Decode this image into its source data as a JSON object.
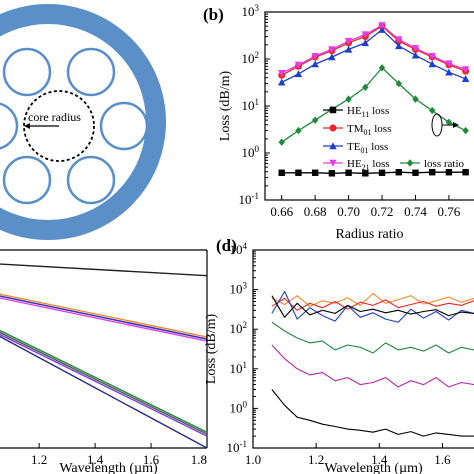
{
  "figure": {
    "panel_b_label": "(b)",
    "panel_d_label": "(d)",
    "schematic_label": "core radius"
  },
  "chart_data": [
    {
      "panel": "a",
      "type": "diagram",
      "annotation": "core radius",
      "colors": {
        "cladding": "#5b8fc8",
        "tubes": "#5b8fc8",
        "core_boundary": "#000000"
      }
    },
    {
      "panel": "b",
      "type": "line",
      "xlabel": "Radius ratio",
      "ylabel": "Loss (dB/m)",
      "xlim": [
        0.65,
        0.775
      ],
      "ylim": [
        0.1,
        1000
      ],
      "yscale": "log",
      "xticks": [
        "0.66",
        "0.68",
        "0.70",
        "0.72",
        "0.74",
        "0.76"
      ],
      "yticks": [
        "10^-1",
        "10^0",
        "10^1",
        "10^2",
        "10^3"
      ],
      "legend_position": "inside right",
      "x": [
        0.66,
        0.67,
        0.68,
        0.69,
        0.7,
        0.71,
        0.72,
        0.73,
        0.74,
        0.75,
        0.76,
        0.77
      ],
      "series": [
        {
          "name": "HE11 loss",
          "name_main": "HE",
          "name_sub": "11",
          "name_tail": " loss",
          "color": "#000000",
          "marker": "square",
          "values": [
            0.38,
            0.38,
            0.38,
            0.37,
            0.38,
            0.37,
            0.38,
            0.39,
            0.38,
            0.39,
            0.39,
            0.39
          ]
        },
        {
          "name": "TM01 loss",
          "name_main": "TM",
          "name_sub": "01",
          "name_tail": " loss",
          "color": "#e8282b",
          "marker": "circle",
          "values": [
            45,
            70,
            110,
            150,
            220,
            300,
            500,
            240,
            160,
            110,
            75,
            55
          ]
        },
        {
          "name": "TE01 loss",
          "name_main": "TE",
          "name_sub": "01",
          "name_tail": " loss",
          "color": "#1f3fc8",
          "marker": "triangle",
          "values": [
            32,
            48,
            78,
            110,
            160,
            220,
            420,
            190,
            120,
            78,
            52,
            38
          ]
        },
        {
          "name": "HE21 loss",
          "name_main": "HE",
          "name_sub": "21",
          "name_tail": " loss",
          "color": "#e53de8",
          "marker": "triangle-down",
          "values": [
            50,
            75,
            115,
            160,
            240,
            330,
            520,
            260,
            170,
            115,
            80,
            60
          ]
        },
        {
          "name": "loss ratio",
          "name_main": "loss ratio",
          "name_sub": "",
          "name_tail": "",
          "color": "#1f8a3c",
          "marker": "diamond",
          "values": [
            1.7,
            3.0,
            5.0,
            8.5,
            14,
            25,
            65,
            30,
            14,
            8,
            4.5,
            3
          ]
        }
      ]
    },
    {
      "panel": "c",
      "type": "line",
      "xlabel": "Wavelength (µm)",
      "xlim": [
        1.05,
        1.8
      ],
      "ylim": [
        0,
        1
      ],
      "xticks": [
        "1.2",
        "1.4",
        "1.6",
        "1.8"
      ],
      "series": [
        {
          "color": "#222222",
          "values_x": [
            1.05,
            1.8
          ],
          "values": [
            0.93,
            0.87
          ]
        },
        {
          "color": "#e8282b",
          "values_x": [
            1.05,
            1.8
          ],
          "values": [
            0.77,
            0.55
          ]
        },
        {
          "color": "#f28a2a",
          "values_x": [
            1.05,
            1.8
          ],
          "values": [
            0.78,
            0.56
          ]
        },
        {
          "color": "#e53de8",
          "values_x": [
            1.05,
            1.8
          ],
          "values": [
            0.76,
            0.54
          ]
        },
        {
          "color": "#1f3fc8",
          "values_x": [
            1.05,
            1.8
          ],
          "values": [
            0.77,
            0.55
          ]
        },
        {
          "color": "#1f8a3c",
          "values_x": [
            1.05,
            1.8
          ],
          "values": [
            0.6,
            0.08
          ]
        },
        {
          "color": "#555555",
          "values_x": [
            1.05,
            1.8
          ],
          "values": [
            0.59,
            0.07
          ]
        },
        {
          "color": "#7a3fd6",
          "values_x": [
            1.05,
            1.8
          ],
          "values": [
            0.58,
            0.06
          ]
        },
        {
          "color": "#2a2a8a",
          "values_x": [
            1.05,
            1.8
          ],
          "values": [
            0.57,
            0.0
          ]
        }
      ]
    },
    {
      "panel": "d",
      "type": "line",
      "xlabel": "Wavelength (µm)",
      "ylabel": "Loss (dB/m)",
      "xlim": [
        1.0,
        1.7
      ],
      "ylim": [
        0.1,
        10000
      ],
      "yscale": "log",
      "xticks": [
        "1.0",
        "1.2",
        "1.4",
        "1.6"
      ],
      "yticks": [
        "10^-1",
        "10^0",
        "10^1",
        "10^2",
        "10^3",
        "10^4"
      ],
      "series": [
        {
          "color": "#f28a2a",
          "x": [
            1.06,
            1.1,
            1.14,
            1.18,
            1.22,
            1.26,
            1.3,
            1.34,
            1.38,
            1.42,
            1.46,
            1.5,
            1.54,
            1.58,
            1.62,
            1.66,
            1.7
          ],
          "values": [
            600,
            420,
            700,
            380,
            520,
            450,
            620,
            400,
            800,
            450,
            560,
            700,
            430,
            520,
            650,
            480,
            600
          ]
        },
        {
          "color": "#e8282b",
          "x": [
            1.06,
            1.1,
            1.14,
            1.18,
            1.22,
            1.26,
            1.3,
            1.34,
            1.38,
            1.42,
            1.46,
            1.5,
            1.54,
            1.58,
            1.62,
            1.66,
            1.7
          ],
          "values": [
            380,
            600,
            300,
            450,
            350,
            500,
            320,
            480,
            400,
            550,
            350,
            420,
            500,
            380,
            450,
            400,
            520
          ]
        },
        {
          "color": "#1f3fc8",
          "x": [
            1.06,
            1.1,
            1.14,
            1.18,
            1.22,
            1.26,
            1.3,
            1.34,
            1.38,
            1.42,
            1.46,
            1.5,
            1.54,
            1.58,
            1.62,
            1.66,
            1.7
          ],
          "values": [
            250,
            900,
            180,
            350,
            220,
            160,
            400,
            200,
            260,
            180,
            150,
            320,
            190,
            280,
            170,
            300,
            250
          ]
        },
        {
          "color": "#000000",
          "x": [
            1.06,
            1.1,
            1.14,
            1.18,
            1.22,
            1.26,
            1.3,
            1.34,
            1.38,
            1.42,
            1.46,
            1.5,
            1.54,
            1.58,
            1.62,
            1.66,
            1.7
          ],
          "values": [
            700,
            200,
            450,
            230,
            300,
            250,
            400,
            280,
            320,
            260,
            300,
            240,
            280,
            310,
            220,
            270,
            250
          ]
        },
        {
          "color": "#1f8a3c",
          "x": [
            1.06,
            1.1,
            1.14,
            1.18,
            1.22,
            1.26,
            1.3,
            1.34,
            1.38,
            1.42,
            1.46,
            1.5,
            1.54,
            1.58,
            1.62,
            1.66,
            1.7
          ],
          "values": [
            150,
            90,
            60,
            45,
            50,
            30,
            40,
            35,
            25,
            45,
            30,
            35,
            28,
            40,
            25,
            35,
            30
          ]
        },
        {
          "color": "#b52aa8",
          "x": [
            1.06,
            1.1,
            1.14,
            1.18,
            1.22,
            1.26,
            1.3,
            1.34,
            1.38,
            1.42,
            1.46,
            1.5,
            1.54,
            1.58,
            1.62,
            1.66,
            1.7
          ],
          "values": [
            40,
            18,
            10,
            7,
            8,
            5,
            6,
            4,
            4.5,
            6,
            3.5,
            5,
            4,
            6,
            3.5,
            4.5,
            4
          ]
        },
        {
          "color": "#000000",
          "x": [
            1.06,
            1.1,
            1.14,
            1.18,
            1.22,
            1.26,
            1.3,
            1.34,
            1.38,
            1.42,
            1.46,
            1.5,
            1.54,
            1.58,
            1.62,
            1.66,
            1.7
          ],
          "values": [
            3,
            1.2,
            0.6,
            0.5,
            0.4,
            0.35,
            0.3,
            0.28,
            0.25,
            0.3,
            0.22,
            0.26,
            0.2,
            0.24,
            0.22,
            0.2,
            0.2
          ]
        }
      ]
    }
  ]
}
